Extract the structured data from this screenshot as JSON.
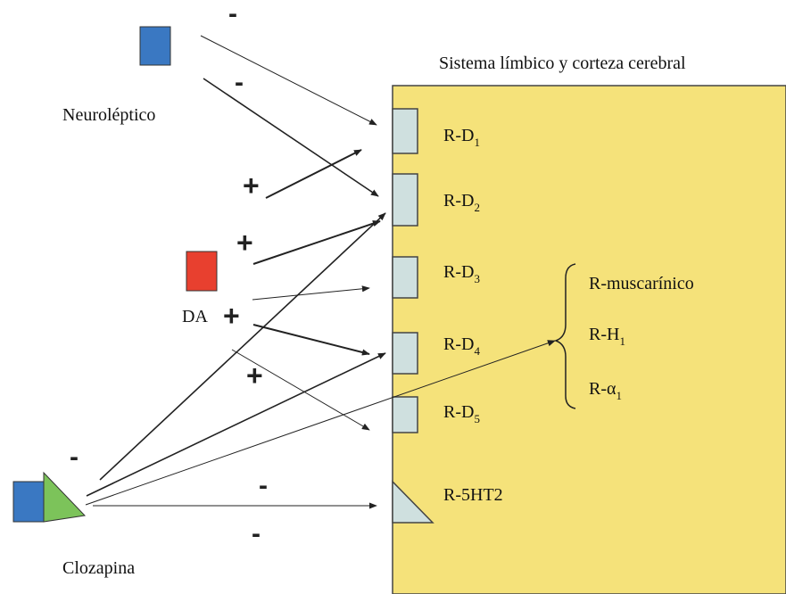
{
  "region_title": "Sistema límbico y corteza cerebral",
  "labels": {
    "neuroleptico": "Neuroléptico",
    "da": "DA",
    "clozapina": "Clozapina"
  },
  "receptors": [
    {
      "base": "R-D",
      "sub": "1"
    },
    {
      "base": "R-D",
      "sub": "2"
    },
    {
      "base": "R-D",
      "sub": "3"
    },
    {
      "base": "R-D",
      "sub": "4"
    },
    {
      "base": "R-D",
      "sub": "5"
    },
    {
      "base": "R-5HT2",
      "sub": ""
    }
  ],
  "other_receptors": [
    {
      "base": "R-muscarínico",
      "sub": ""
    },
    {
      "base": "R-H",
      "sub": "1"
    },
    {
      "base": "R-α",
      "sub": "1"
    }
  ],
  "signs": [
    "-",
    "-",
    "+",
    "+",
    "+",
    "+",
    "-",
    "-",
    "-"
  ],
  "colors": {
    "region": "#f5e27a",
    "receptor": "#cfe0df",
    "neuroleptic": "#3a78c2",
    "dopamine": "#e8402f",
    "clozapine_square": "#3a78c2",
    "clozapine_triangle": "#7cc35a",
    "arrow": "#222222"
  }
}
